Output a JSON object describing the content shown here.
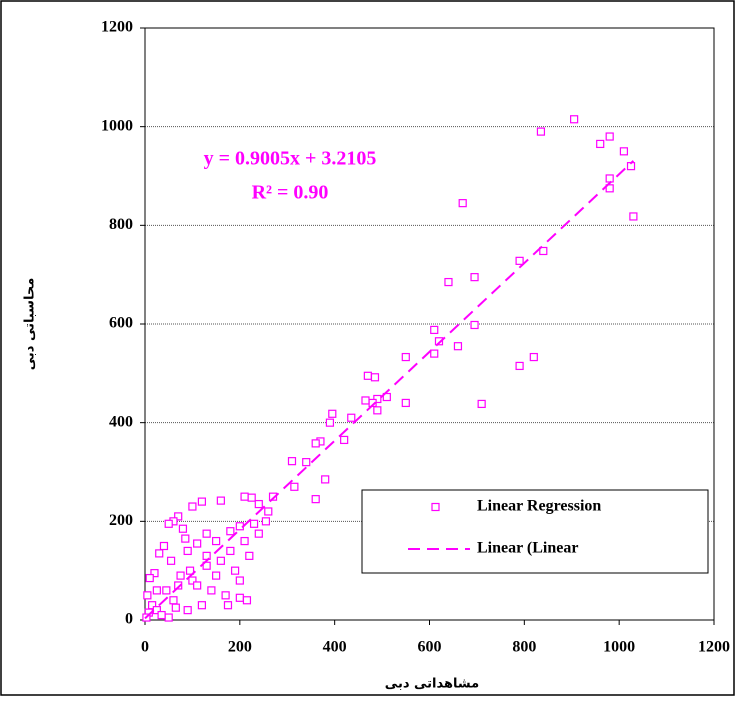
{
  "chart_data": {
    "type": "scatter",
    "x_label": "مشاهداتی دبی",
    "y_label": "محاسباتی دبی",
    "annotations": [
      "y = 0.9005x + 3.2105",
      "R² = 0.90"
    ],
    "xlim": [
      0,
      1200
    ],
    "xticks": [
      0,
      200,
      400,
      600,
      800,
      1000,
      1200
    ],
    "ylim": [
      0,
      1200
    ],
    "yticks": [
      0,
      200,
      400,
      600,
      800,
      1000,
      1200
    ],
    "grid": true,
    "series": [
      {
        "name": "Linear Regression",
        "color": "#ff00ff",
        "kind": "scatter",
        "x": [
          905,
          835,
          980,
          960,
          1010,
          980,
          980,
          1025,
          1030,
          670,
          790,
          840,
          695,
          640,
          695,
          610,
          620,
          660,
          610,
          550,
          820,
          790,
          710,
          470,
          485,
          510,
          490,
          480,
          465,
          490,
          550,
          435,
          395,
          390,
          420,
          370,
          360,
          340,
          310,
          315,
          380,
          360,
          270,
          210,
          225,
          240,
          260,
          255,
          230,
          200,
          180,
          160,
          120,
          100,
          70,
          60,
          50,
          80,
          130,
          150,
          110,
          90,
          40,
          30,
          20,
          10,
          5,
          15,
          25,
          35,
          50,
          60,
          70,
          100,
          140,
          170,
          200,
          215,
          190,
          220,
          160,
          130,
          95,
          75,
          45,
          8,
          3,
          120,
          90,
          150,
          180,
          210,
          240,
          110,
          55,
          85,
          65,
          25,
          200,
          175,
          130
        ],
        "values": [
          1015,
          990,
          980,
          965,
          950,
          895,
          875,
          920,
          818,
          845,
          728,
          748,
          695,
          685,
          598,
          588,
          565,
          555,
          540,
          533,
          533,
          515,
          438,
          495,
          492,
          452,
          448,
          440,
          445,
          425,
          440,
          410,
          418,
          400,
          365,
          362,
          358,
          320,
          322,
          270,
          285,
          245,
          250,
          250,
          248,
          235,
          220,
          200,
          195,
          190,
          180,
          242,
          240,
          230,
          210,
          200,
          195,
          185,
          175,
          160,
          155,
          140,
          150,
          135,
          95,
          85,
          50,
          30,
          20,
          10,
          5,
          40,
          70,
          80,
          60,
          50,
          45,
          40,
          100,
          130,
          120,
          110,
          100,
          90,
          60,
          15,
          5,
          30,
          20,
          90,
          140,
          160,
          175,
          70,
          120,
          165,
          25,
          60,
          80,
          30,
          130
        ]
      },
      {
        "name": "Linear (Linear",
        "color": "#ff00ff",
        "kind": "line",
        "dash": true,
        "x": [
          0,
          1030
        ],
        "values": [
          3.21,
          930.73
        ]
      }
    ]
  }
}
